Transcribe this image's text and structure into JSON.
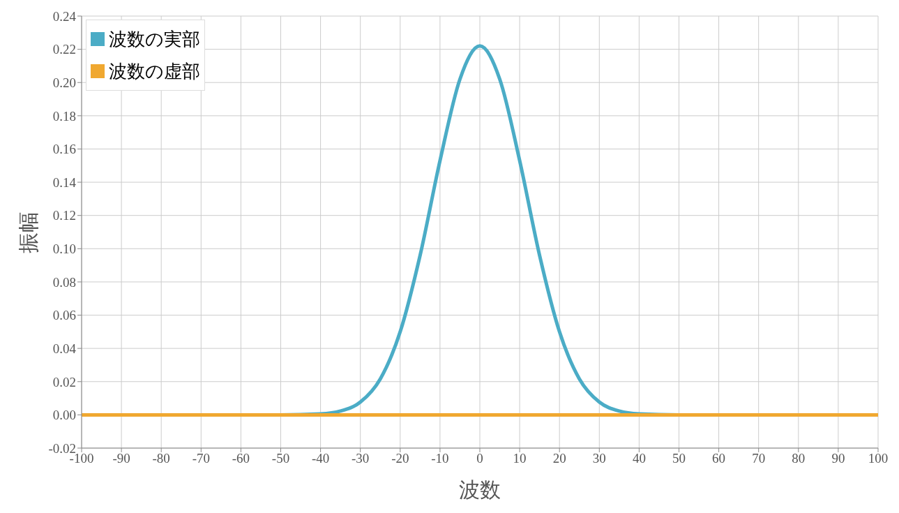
{
  "chart_data": {
    "type": "line",
    "xlabel": "波数",
    "ylabel": "振幅",
    "xlim": [
      -100,
      100
    ],
    "xticks": [
      -100,
      -90,
      -80,
      -70,
      -60,
      -50,
      -40,
      -30,
      -20,
      -10,
      0,
      10,
      20,
      30,
      40,
      50,
      60,
      70,
      80,
      90,
      100
    ],
    "ylim": [
      -0.02,
      0.24
    ],
    "yticks": [
      {
        "value": -0.02,
        "label": "-0.02"
      },
      {
        "value": 0,
        "label": "0.00"
      },
      {
        "value": 0.02,
        "label": "0.02"
      },
      {
        "value": 0.04,
        "label": "0.04"
      },
      {
        "value": 0.06,
        "label": "0.06"
      },
      {
        "value": 0.08,
        "label": "0.08"
      },
      {
        "value": 0.1,
        "label": "0.10"
      },
      {
        "value": 0.12,
        "label": "0.12"
      },
      {
        "value": 0.14,
        "label": "0.14"
      },
      {
        "value": 0.16,
        "label": "0.16"
      },
      {
        "value": 0.18,
        "label": "0.18"
      },
      {
        "value": 0.2,
        "label": "0.20"
      },
      {
        "value": 0.22,
        "label": "0.22"
      },
      {
        "value": 0.24,
        "label": "0.24"
      }
    ],
    "grid": true,
    "legend": "top left",
    "marker": "none",
    "line_style": "solid",
    "series": [
      {
        "name": "波数の実部",
        "color": "#4bacc6",
        "x": [
          -100,
          -50,
          -40,
          -35,
          -30,
          -25,
          -20,
          -15,
          -10,
          -5,
          0,
          5,
          10,
          15,
          20,
          25,
          30,
          35,
          40,
          50,
          100
        ],
        "values": [
          0,
          0,
          0.0006,
          0.0023,
          0.0077,
          0.0216,
          0.05,
          0.096,
          0.153,
          0.202,
          0.222,
          0.202,
          0.153,
          0.096,
          0.05,
          0.0216,
          0.0077,
          0.0023,
          0.0006,
          0,
          0
        ]
      },
      {
        "name": "波数の虚部",
        "color": "#f0a830",
        "x": [
          -100,
          100
        ],
        "values": [
          0,
          0
        ]
      }
    ]
  }
}
